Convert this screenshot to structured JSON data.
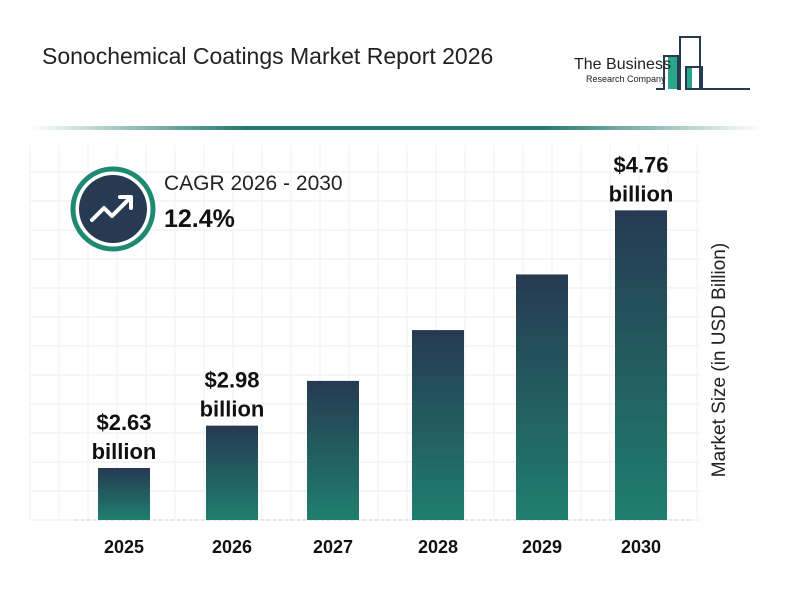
{
  "header": {
    "title": "Sonochemical Coatings Market Report 2026"
  },
  "logo": {
    "line1": "The Business",
    "line2": "Research Company"
  },
  "cagr": {
    "label": "CAGR 2026 - 2030",
    "value": "12.4%",
    "icon": "trending-up-icon"
  },
  "colors": {
    "bar_top": "#263a52",
    "bar_bottom": "#1f7f6e",
    "accent": "#1f7a6c",
    "circle": "#263a52"
  },
  "chart_data": {
    "type": "bar",
    "title": "Sonochemical Coatings Market Report 2026",
    "categories": [
      "2025",
      "2026",
      "2027",
      "2028",
      "2029",
      "2030"
    ],
    "values": [
      2.63,
      2.98,
      3.35,
      3.77,
      4.23,
      4.76
    ],
    "data_labels": [
      [
        "$2.63",
        "billion"
      ],
      [
        "$2.98",
        "billion"
      ],
      null,
      null,
      null,
      [
        "$4.76",
        "billion"
      ]
    ],
    "xlabel": "",
    "ylabel": "Market Size (in USD Billion)",
    "ylim": [
      2.2,
      5.3
    ],
    "grid": true
  }
}
